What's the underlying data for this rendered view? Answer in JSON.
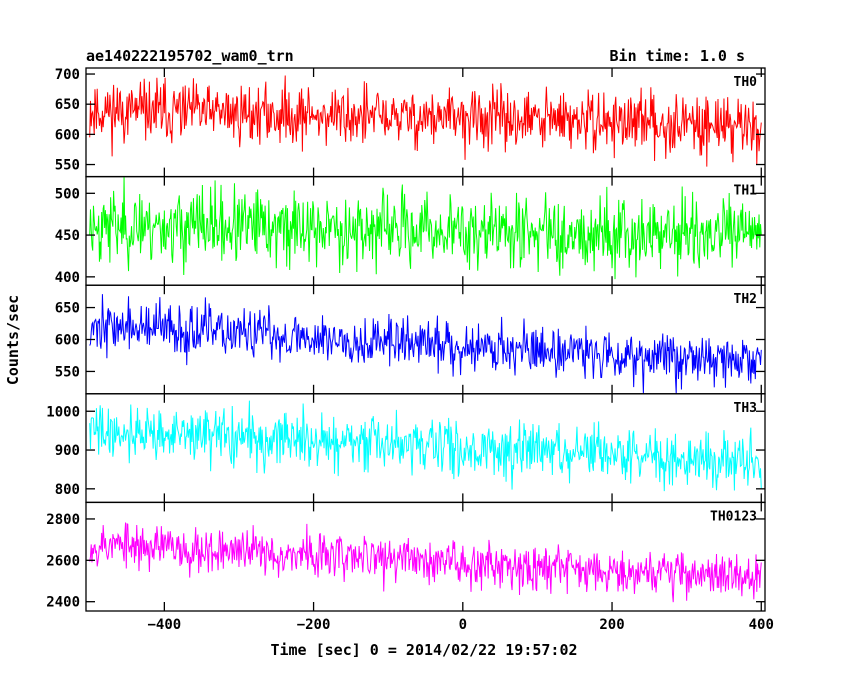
{
  "chart_data": {
    "type": "line",
    "title": "ae140222195702_wam0_trn",
    "subtitle": "Bin time: 1.0 s",
    "xlabel": "Time [sec] 0 = 2014/02/22 19:57:02",
    "ylabel": "Counts/sec",
    "xlim": [
      -505,
      405
    ],
    "xticks": [
      -400,
      -200,
      0,
      200,
      400
    ],
    "x_tick_labels": [
      "−400",
      "−200",
      "0",
      "200",
      "400"
    ],
    "x_start": -500,
    "x_end": 400,
    "bin_time": 1.0,
    "grid": false,
    "panels": [
      {
        "name": "TH0",
        "color": "#ff0000",
        "ylim": [
          530,
          710
        ],
        "yticks": [
          550,
          600,
          650,
          700
        ],
        "mean_start": 640,
        "mean_end": 615,
        "noise": 25,
        "seed": 11
      },
      {
        "name": "TH1",
        "color": "#00ff00",
        "ylim": [
          390,
          520
        ],
        "yticks": [
          400,
          450,
          500
        ],
        "mean_start": 462,
        "mean_end": 450,
        "noise": 22,
        "seed": 23
      },
      {
        "name": "TH2",
        "color": "#0000ff",
        "ylim": [
          515,
          685
        ],
        "yticks": [
          550,
          600,
          650
        ],
        "mean_start": 622,
        "mean_end": 565,
        "noise": 20,
        "seed": 37
      },
      {
        "name": "TH3",
        "color": "#00ffff",
        "ylim": [
          765,
          1045
        ],
        "yticks": [
          800,
          900,
          1000
        ],
        "mean_start": 950,
        "mean_end": 870,
        "noise": 35,
        "seed": 41
      },
      {
        "name": "TH0123",
        "color": "#ff00ff",
        "ylim": [
          2355,
          2880
        ],
        "yticks": [
          2400,
          2600,
          2800
        ],
        "mean_start": 2680,
        "mean_end": 2520,
        "noise": 55,
        "seed": 53
      }
    ]
  }
}
